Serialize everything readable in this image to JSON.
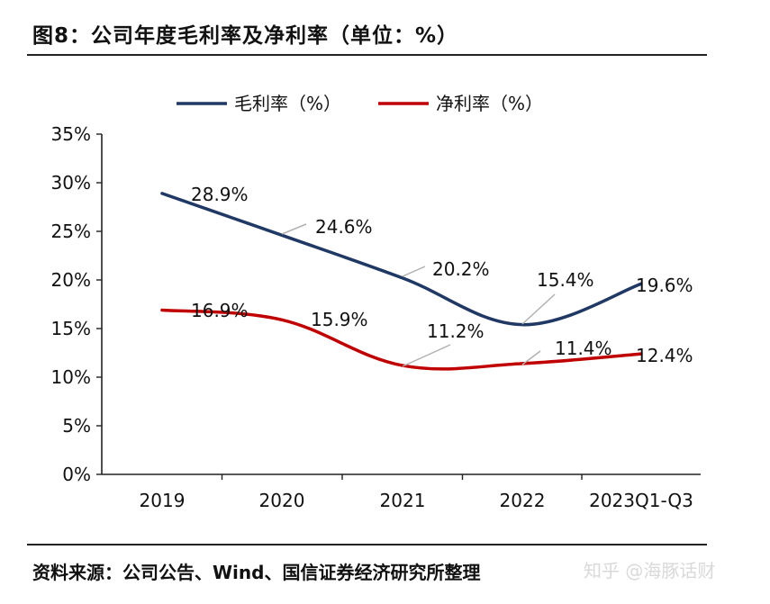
{
  "title": "图8：公司年度毛利率及净利率（单位：%）",
  "source": "资料来源：公司公告、Wind、国信证券经济研究所整理",
  "watermark": "知乎 @海豚话财",
  "chart_data": {
    "type": "line",
    "categories": [
      "2019",
      "2020",
      "2021",
      "2022",
      "2023Q1-Q3"
    ],
    "series": [
      {
        "name": "毛利率（%）",
        "color": "#1f3864",
        "values": [
          28.9,
          24.6,
          20.2,
          15.4,
          19.6
        ],
        "labels": [
          "28.9%",
          "24.6%",
          "20.2%",
          "15.4%",
          "19.6%"
        ]
      },
      {
        "name": "净利率（%）",
        "color": "#c00000",
        "values": [
          16.9,
          15.9,
          11.2,
          11.4,
          12.4
        ],
        "labels": [
          "16.9%",
          "15.9%",
          "11.2%",
          "11.4%",
          "12.4%"
        ]
      }
    ],
    "ylim": [
      0,
      35
    ],
    "yticks": [
      "0%",
      "5%",
      "10%",
      "15%",
      "20%",
      "25%",
      "30%",
      "35%"
    ],
    "legend_position": "top",
    "grid": false
  }
}
